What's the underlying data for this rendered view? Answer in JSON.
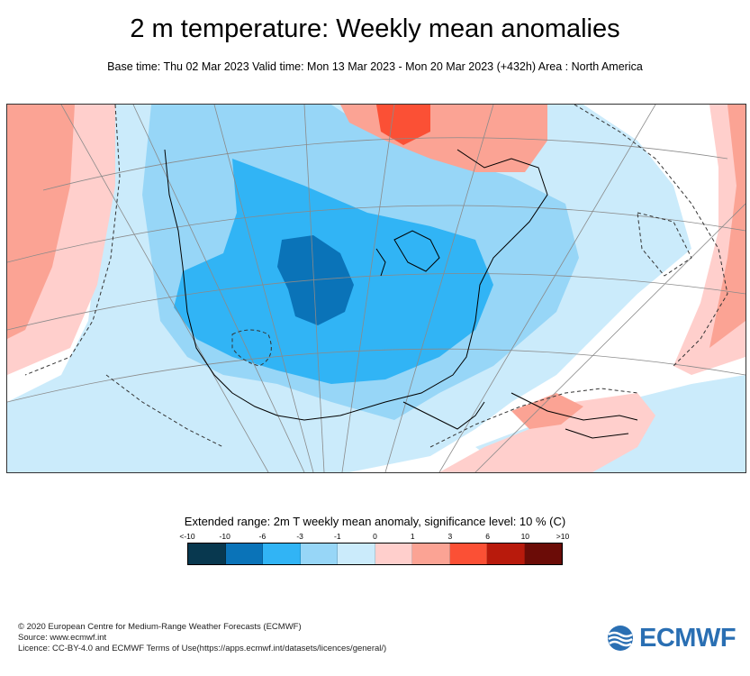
{
  "title": "2 m temperature: Weekly mean anomalies",
  "subtitle": "Base time: Thu 02 Mar 2023 Valid time: Mon 13 Mar 2023 - Mon 20 Mar 2023 (+432h) Area : North America",
  "legend": {
    "title": "Extended range: 2m T weekly mean anomaly, significance level: 10 % (C)",
    "labels": [
      "<-10",
      "-10",
      "-6",
      "-3",
      "-1",
      "0",
      "1",
      "3",
      "6",
      "10",
      ">10"
    ],
    "colors": [
      "#08384f",
      "#0a73b8",
      "#31b4f5",
      "#97d6f7",
      "#cbebfb",
      "#ffcfcc",
      "#fba394",
      "#fb5035",
      "#b81a0c",
      "#6b0c07"
    ]
  },
  "footer": {
    "line1": "© 2020 European Centre for Medium-Range Weather Forecasts (ECMWF)",
    "line2": "Source: www.ecmwf.int",
    "line3": "Licence: CC-BY-4.0 and ECMWF Terms of Use(https://apps.ecmwf.int/datasets/licences/general/)"
  },
  "logo": {
    "text": "ECMWF"
  }
}
